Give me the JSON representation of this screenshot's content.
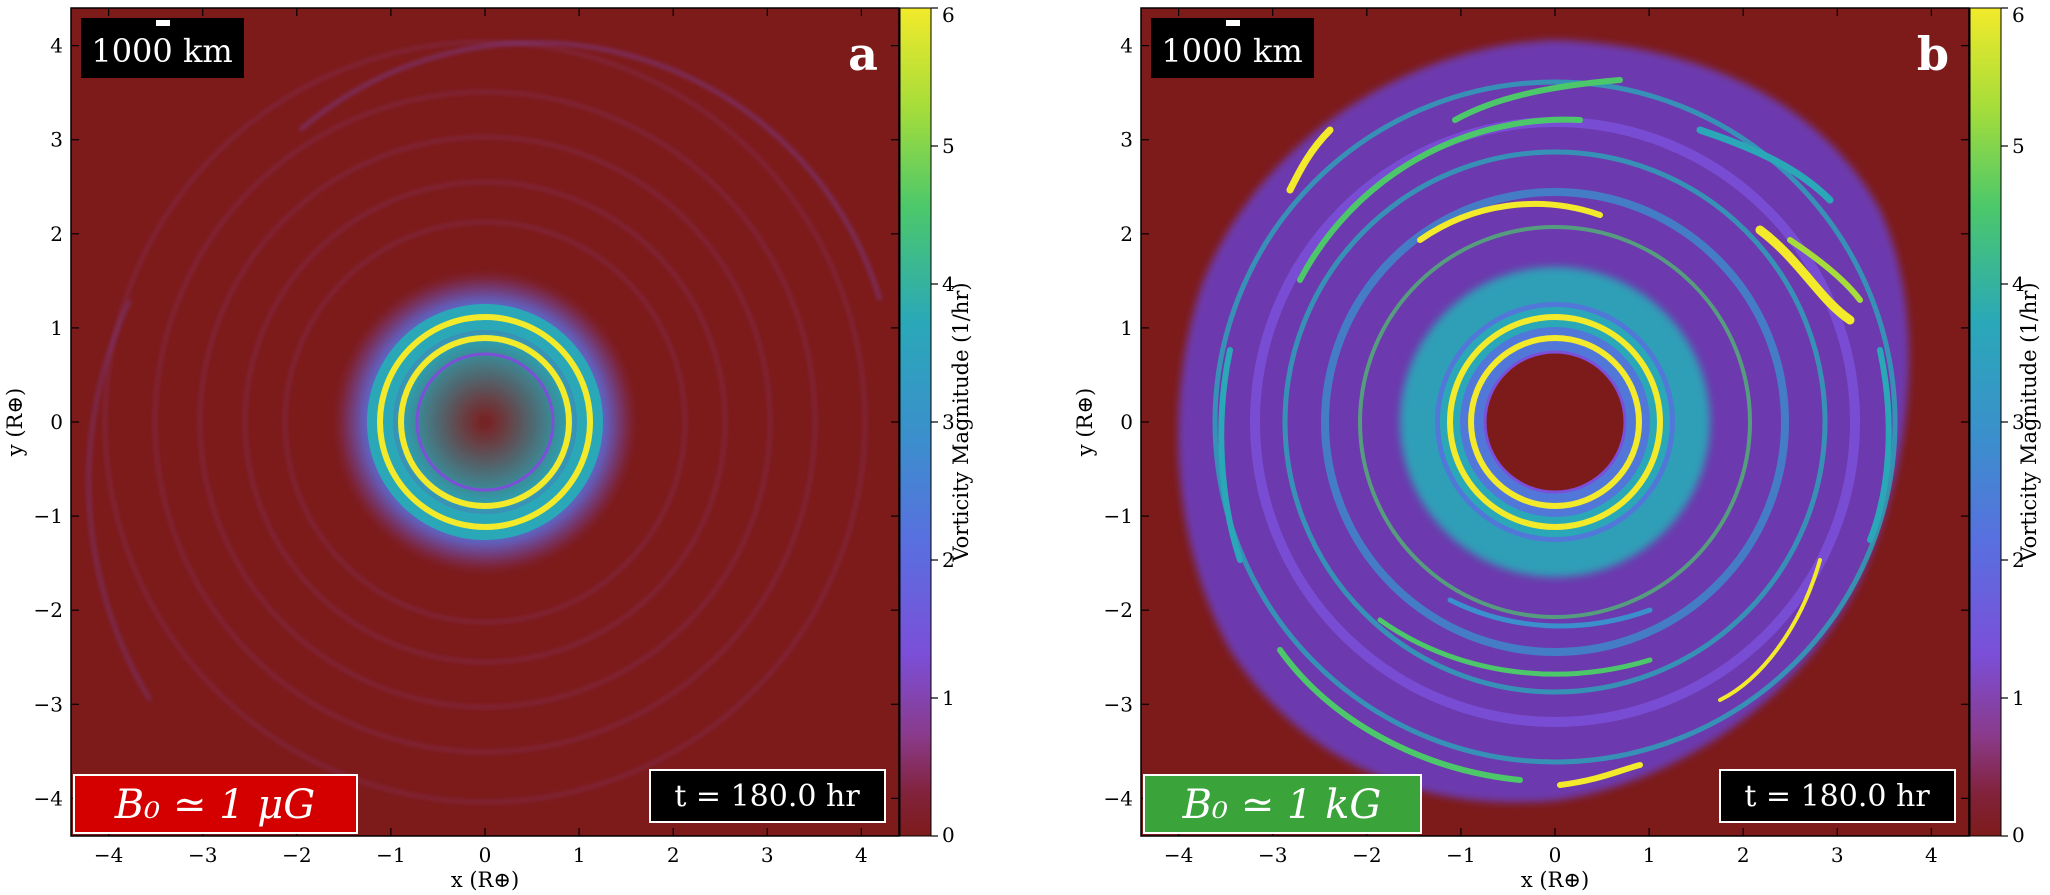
{
  "chart_data": [
    {
      "type": "heatmap",
      "panel_letter": "a",
      "xlabel": "x  (R⊕)",
      "ylabel": "y  (R⊕)",
      "xlim": [
        -4.4,
        4.4
      ],
      "ylim": [
        -4.4,
        4.4
      ],
      "x_ticks": [
        "−4",
        "−3",
        "−2",
        "−1",
        "0",
        "1",
        "2",
        "3",
        "4"
      ],
      "y_ticks": [
        "4",
        "3",
        "2",
        "1",
        "0",
        "−1",
        "−2",
        "−3",
        "−4"
      ],
      "scale_bar_label": "1000 km",
      "field_label": "B₀ ≃ 1  μG",
      "time_label": "t = 180.0 hr",
      "colorbar": {
        "label": "Vorticity Magnitude  (1/hr)",
        "range": [
          0,
          6
        ],
        "ticks": [
          "0",
          "1",
          "2",
          "3",
          "4",
          "5",
          "6"
        ]
      },
      "field_box_color": "#d40000"
    },
    {
      "type": "heatmap",
      "panel_letter": "b",
      "xlabel": "x  (R⊕)",
      "ylabel": "y  (R⊕)",
      "xlim": [
        -4.4,
        4.4
      ],
      "ylim": [
        -4.4,
        4.4
      ],
      "x_ticks": [
        "−4",
        "−3",
        "−2",
        "−1",
        "0",
        "1",
        "2",
        "3",
        "4"
      ],
      "y_ticks": [
        "4",
        "3",
        "2",
        "1",
        "0",
        "−1",
        "−2",
        "−3",
        "−4"
      ],
      "scale_bar_label": "1000 km",
      "field_label": "B₀ ≃ 1  kG",
      "time_label": "t = 180.0 hr",
      "colorbar": {
        "label": "Vorticity Magnitude  (1/hr)",
        "range": [
          0,
          6
        ],
        "ticks": [
          "0",
          "1",
          "2",
          "3",
          "4",
          "5",
          "6"
        ]
      },
      "field_box_color": "#3aa33a"
    }
  ],
  "colors": {
    "background": "#7d1b1b",
    "purple": "#7b4fd8",
    "teal": "#2aa8b8",
    "green": "#4cc86a",
    "yellow": "#f2ea2a"
  }
}
